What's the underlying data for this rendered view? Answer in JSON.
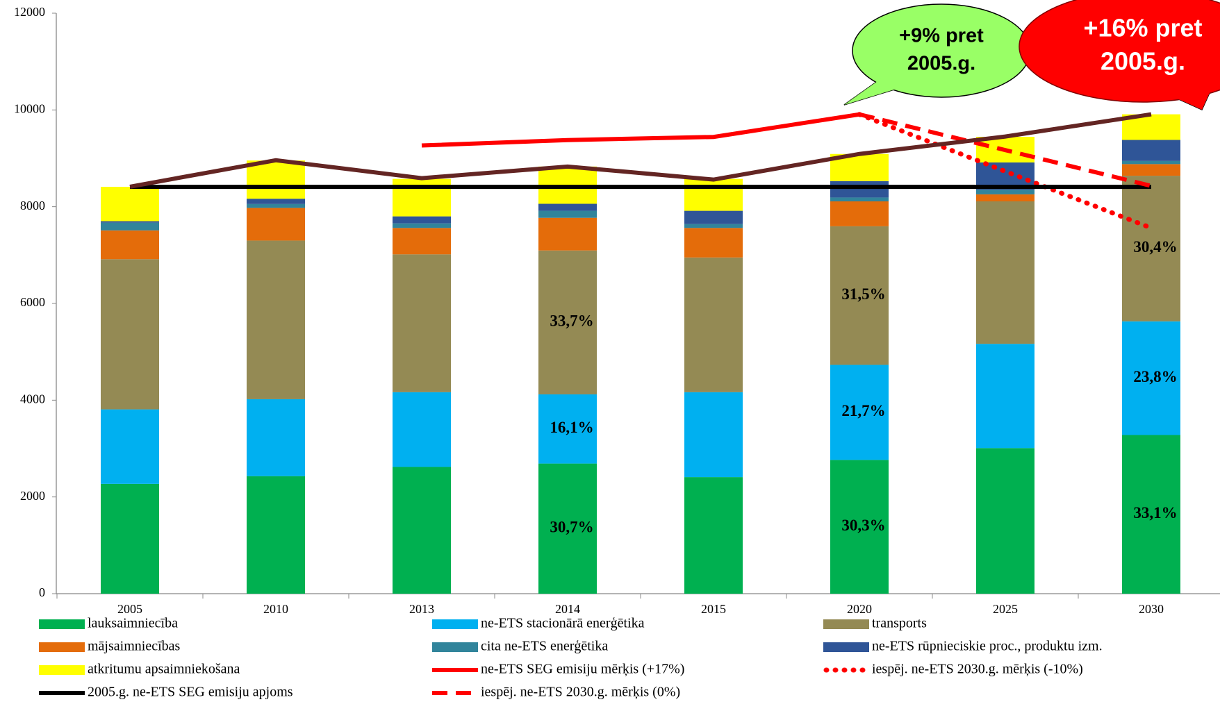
{
  "chart_data": {
    "type": "bar",
    "categories": [
      "2005",
      "2010",
      "2013",
      "2014",
      "2015",
      "2020",
      "2025",
      "2030"
    ],
    "ylim": [
      0,
      12000
    ],
    "yticks": [
      0,
      2000,
      4000,
      6000,
      8000,
      10000,
      12000
    ],
    "series": [
      {
        "name": "lauksaimniecība",
        "kind": "bar",
        "color": "#00b050",
        "values": [
          2270,
          2430,
          2620,
          2690,
          2410,
          2765,
          3010,
          3280
        ]
      },
      {
        "name": "ne-ETS stacionārā enerģētika",
        "kind": "bar",
        "color": "#00b0f0",
        "values": [
          1540,
          1590,
          1545,
          1430,
          1755,
          1965,
          2155,
          2350
        ]
      },
      {
        "name": "transports",
        "kind": "bar",
        "color": "#948a54",
        "values": [
          3105,
          3280,
          2850,
          2975,
          2785,
          2865,
          2945,
          3010
        ]
      },
      {
        "name": "mājsaimniecības",
        "kind": "bar",
        "color": "#e46c0a",
        "values": [
          595,
          675,
          545,
          675,
          610,
          515,
          145,
          240
        ]
      },
      {
        "name": "cita ne-ETS enerģētika",
        "kind": "bar",
        "color": "#31849b",
        "values": [
          160,
          80,
          95,
          145,
          80,
          80,
          95,
          65
        ]
      },
      {
        "name": "ne-ETS rūpnieciskie proc., produktu izm.",
        "kind": "bar",
        "color": "#2f5597",
        "values": [
          30,
          110,
          145,
          145,
          275,
          340,
          565,
          435
        ]
      },
      {
        "name": "atkritumu apsaimniekošana",
        "kind": "bar",
        "color": "#ffff00",
        "values": [
          710,
          790,
          775,
          770,
          660,
          560,
          530,
          530
        ]
      },
      {
        "name": "ne-ETS SEG emisiju mērķis (+17%)",
        "kind": "line",
        "style": "solid",
        "color": "#ff0000",
        "values": [
          null,
          null,
          9265,
          9377,
          9442,
          9908,
          null,
          null
        ]
      },
      {
        "name": "iespēj. ne-ETS 2030.g. mērķis (-10%)",
        "kind": "line",
        "style": "dotted",
        "color": "#ff0000",
        "values": [
          null,
          null,
          null,
          null,
          null,
          9908,
          8730,
          7560
        ]
      },
      {
        "name": "2005.g. ne-ETS SEG emisiju apjoms",
        "kind": "line",
        "style": "solid",
        "color": "#000000",
        "values": [
          8410,
          8410,
          8410,
          8410,
          8410,
          8410,
          8410,
          8410
        ]
      },
      {
        "name": "iespēj. ne-ETS 2030.g. mērķis (0%)",
        "kind": "line",
        "style": "dashed",
        "color": "#ff0000",
        "values": [
          null,
          null,
          null,
          null,
          null,
          9908,
          9170,
          8430
        ]
      },
      {
        "kind": "line",
        "style": "solid",
        "color": "#632523",
        "values": [
          8413,
          8960,
          8590,
          8830,
          8560,
          9090,
          9450,
          9910
        ]
      }
    ],
    "annotations": [
      {
        "text": "30,7%",
        "category": 3,
        "series": 0
      },
      {
        "text": "16,1%",
        "category": 3,
        "series": 1
      },
      {
        "text": "33,7%",
        "category": 3,
        "series": 2
      },
      {
        "text": "30,3%",
        "category": 5,
        "series": 0
      },
      {
        "text": "21,7%",
        "category": 5,
        "series": 1
      },
      {
        "text": "31,5%",
        "category": 5,
        "series": 2
      },
      {
        "text": "33,1%",
        "category": 7,
        "series": 0
      },
      {
        "text": "23,8%",
        "category": 7,
        "series": 1
      },
      {
        "text": "30,4%",
        "category": 7,
        "series": 2
      }
    ],
    "callouts": [
      {
        "lines": [
          "+9% pret",
          "2005.g."
        ],
        "color": "#99ff66",
        "text_color": "#000000"
      },
      {
        "lines": [
          "+16% pret",
          "2005.g."
        ],
        "color": "#ff0000",
        "text_color": "#ffffff"
      }
    ]
  }
}
